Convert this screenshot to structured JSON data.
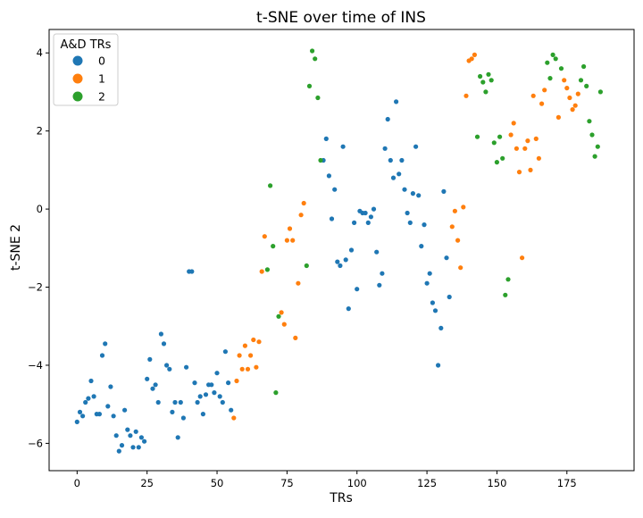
{
  "chart_data": {
    "type": "scatter",
    "title": "t-SNE over time of INS",
    "xlabel": "TRs",
    "ylabel": "t-SNE 2",
    "xlim": [
      -10,
      199
    ],
    "ylim": [
      -6.7,
      4.6
    ],
    "xticks": [
      0,
      25,
      50,
      75,
      100,
      125,
      150,
      175
    ],
    "yticks": [
      -6,
      -4,
      -2,
      0,
      2,
      4
    ],
    "grid": false,
    "legend": {
      "title": "A&D TRs",
      "placement": "top-left"
    },
    "series": [
      {
        "name": "0",
        "color": "#1f77b4",
        "points": [
          [
            0,
            -5.45
          ],
          [
            1,
            -5.2
          ],
          [
            2,
            -5.3
          ],
          [
            3,
            -4.95
          ],
          [
            4,
            -4.85
          ],
          [
            5,
            -4.4
          ],
          [
            6,
            -4.8
          ],
          [
            7,
            -5.25
          ],
          [
            8,
            -5.25
          ],
          [
            9,
            -3.75
          ],
          [
            10,
            -3.45
          ],
          [
            11,
            -5.05
          ],
          [
            12,
            -4.55
          ],
          [
            13,
            -5.3
          ],
          [
            14,
            -5.8
          ],
          [
            15,
            -6.2
          ],
          [
            16,
            -6.05
          ],
          [
            17,
            -5.15
          ],
          [
            18,
            -5.65
          ],
          [
            19,
            -5.8
          ],
          [
            20,
            -6.1
          ],
          [
            21,
            -5.7
          ],
          [
            22,
            -6.1
          ],
          [
            23,
            -5.85
          ],
          [
            24,
            -5.95
          ],
          [
            25,
            -4.35
          ],
          [
            26,
            -3.85
          ],
          [
            27,
            -4.6
          ],
          [
            28,
            -4.5
          ],
          [
            29,
            -4.95
          ],
          [
            30,
            -3.2
          ],
          [
            31,
            -3.45
          ],
          [
            32,
            -4.0
          ],
          [
            33,
            -4.1
          ],
          [
            34,
            -5.2
          ],
          [
            35,
            -4.95
          ],
          [
            36,
            -5.85
          ],
          [
            37,
            -4.95
          ],
          [
            38,
            -5.35
          ],
          [
            39,
            -4.05
          ],
          [
            40,
            -1.6
          ],
          [
            41,
            -1.6
          ],
          [
            42,
            -4.45
          ],
          [
            43,
            -4.95
          ],
          [
            44,
            -4.8
          ],
          [
            45,
            -5.25
          ],
          [
            46,
            -4.75
          ],
          [
            47,
            -4.5
          ],
          [
            48,
            -4.5
          ],
          [
            49,
            -4.7
          ],
          [
            50,
            -4.2
          ],
          [
            51,
            -4.8
          ],
          [
            52,
            -4.95
          ],
          [
            53,
            -3.65
          ],
          [
            54,
            -4.45
          ],
          [
            55,
            -5.15
          ],
          [
            88,
            1.25
          ],
          [
            89,
            1.8
          ],
          [
            90,
            0.85
          ],
          [
            91,
            -0.25
          ],
          [
            92,
            0.5
          ],
          [
            93,
            -1.35
          ],
          [
            94,
            -1.45
          ],
          [
            95,
            1.6
          ],
          [
            96,
            -1.3
          ],
          [
            97,
            -2.55
          ],
          [
            98,
            -1.05
          ],
          [
            99,
            -0.35
          ],
          [
            100,
            -2.05
          ],
          [
            101,
            -0.05
          ],
          [
            102,
            -0.1
          ],
          [
            103,
            -0.1
          ],
          [
            104,
            -0.35
          ],
          [
            105,
            -0.2
          ],
          [
            106,
            0.0
          ],
          [
            107,
            -1.1
          ],
          [
            108,
            -1.95
          ],
          [
            109,
            -1.65
          ],
          [
            110,
            1.55
          ],
          [
            111,
            2.3
          ],
          [
            112,
            1.25
          ],
          [
            113,
            0.8
          ],
          [
            114,
            2.75
          ],
          [
            115,
            0.9
          ],
          [
            116,
            1.25
          ],
          [
            117,
            0.5
          ],
          [
            118,
            -0.1
          ],
          [
            119,
            -0.35
          ],
          [
            120,
            0.4
          ],
          [
            121,
            1.6
          ],
          [
            122,
            0.35
          ],
          [
            123,
            -0.95
          ],
          [
            124,
            -0.4
          ],
          [
            125,
            -1.9
          ],
          [
            126,
            -1.65
          ],
          [
            127,
            -2.4
          ],
          [
            128,
            -2.6
          ],
          [
            129,
            -4.0
          ],
          [
            130,
            -3.05
          ],
          [
            131,
            0.45
          ],
          [
            132,
            -1.25
          ],
          [
            133,
            -2.25
          ]
        ]
      },
      {
        "name": "1",
        "color": "#ff7f0e",
        "points": [
          [
            56,
            -5.35
          ],
          [
            57,
            -4.4
          ],
          [
            58,
            -3.75
          ],
          [
            59,
            -4.1
          ],
          [
            60,
            -3.5
          ],
          [
            61,
            -4.1
          ],
          [
            62,
            -3.75
          ],
          [
            63,
            -3.35
          ],
          [
            64,
            -4.05
          ],
          [
            65,
            -3.4
          ],
          [
            66,
            -1.6
          ],
          [
            67,
            -0.7
          ],
          [
            73,
            -2.65
          ],
          [
            74,
            -2.95
          ],
          [
            75,
            -0.8
          ],
          [
            76,
            -0.5
          ],
          [
            77,
            -0.8
          ],
          [
            78,
            -3.3
          ],
          [
            79,
            -1.9
          ],
          [
            80,
            -0.15
          ],
          [
            81,
            0.15
          ],
          [
            134,
            -0.45
          ],
          [
            135,
            -0.05
          ],
          [
            136,
            -0.8
          ],
          [
            137,
            -1.5
          ],
          [
            138,
            0.05
          ],
          [
            139,
            2.9
          ],
          [
            140,
            3.8
          ],
          [
            141,
            3.85
          ],
          [
            142,
            3.95
          ],
          [
            155,
            1.9
          ],
          [
            156,
            2.2
          ],
          [
            157,
            1.55
          ],
          [
            158,
            0.95
          ],
          [
            159,
            -1.25
          ],
          [
            160,
            1.55
          ],
          [
            161,
            1.75
          ],
          [
            162,
            1.0
          ],
          [
            163,
            2.9
          ],
          [
            164,
            1.8
          ],
          [
            165,
            1.3
          ],
          [
            166,
            2.7
          ],
          [
            167,
            3.05
          ],
          [
            172,
            2.35
          ],
          [
            174,
            3.3
          ],
          [
            175,
            3.1
          ],
          [
            176,
            2.85
          ],
          [
            177,
            2.55
          ],
          [
            178,
            2.65
          ],
          [
            179,
            2.95
          ]
        ]
      },
      {
        "name": "2",
        "color": "#2ca02c",
        "points": [
          [
            68,
            -1.55
          ],
          [
            69,
            0.6
          ],
          [
            70,
            -0.95
          ],
          [
            71,
            -4.7
          ],
          [
            72,
            -2.75
          ],
          [
            82,
            -1.45
          ],
          [
            83,
            3.15
          ],
          [
            84,
            4.05
          ],
          [
            85,
            3.85
          ],
          [
            86,
            2.85
          ],
          [
            87,
            1.25
          ],
          [
            143,
            1.85
          ],
          [
            144,
            3.4
          ],
          [
            145,
            3.25
          ],
          [
            146,
            3.0
          ],
          [
            147,
            3.45
          ],
          [
            148,
            3.3
          ],
          [
            149,
            1.7
          ],
          [
            150,
            1.2
          ],
          [
            151,
            1.85
          ],
          [
            152,
            1.3
          ],
          [
            153,
            -2.2
          ],
          [
            154,
            -1.8
          ],
          [
            168,
            3.75
          ],
          [
            169,
            3.35
          ],
          [
            170,
            3.95
          ],
          [
            171,
            3.85
          ],
          [
            173,
            3.6
          ],
          [
            180,
            3.3
          ],
          [
            181,
            3.65
          ],
          [
            182,
            3.15
          ],
          [
            183,
            2.25
          ],
          [
            184,
            1.9
          ],
          [
            185,
            1.35
          ],
          [
            186,
            1.6
          ],
          [
            187,
            3.0
          ]
        ]
      }
    ]
  }
}
